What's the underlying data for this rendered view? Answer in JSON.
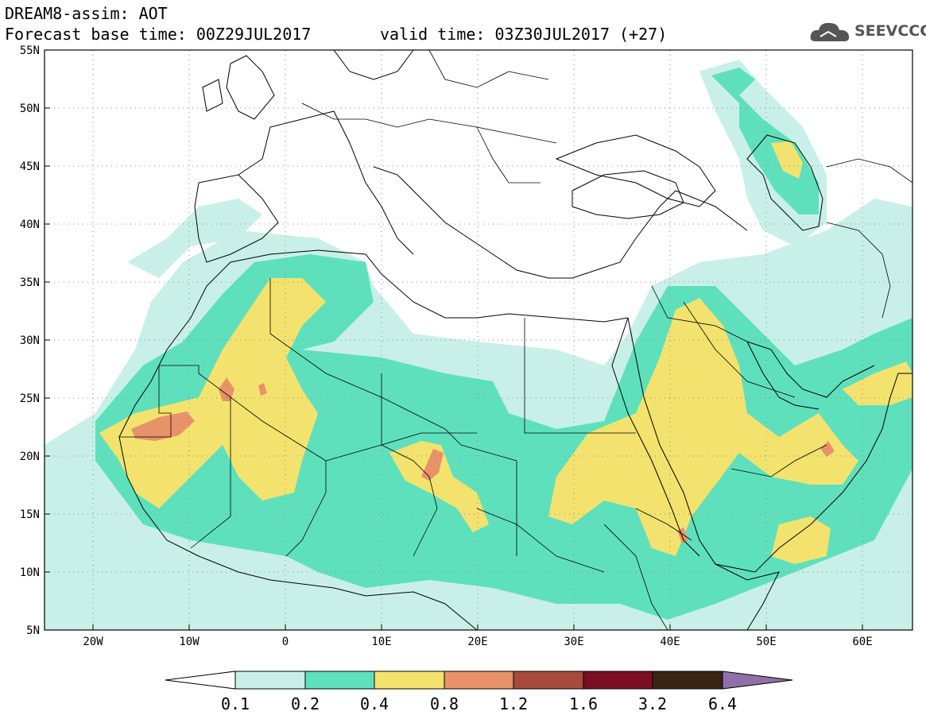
{
  "header": {
    "title": "DREAM8-assim: AOT",
    "base_time": "Forecast base time: 00Z29JUL2017",
    "valid_time": "valid time: 03Z30JUL2017 (+27)"
  },
  "logo": {
    "text": "SEEVCCC",
    "icon": "cloud-icon"
  },
  "map": {
    "lat_labels": [
      "55N",
      "50N",
      "45N",
      "40N",
      "35N",
      "30N",
      "25N",
      "20N",
      "15N",
      "10N",
      "5N"
    ],
    "lon_labels": [
      "20W",
      "10W",
      "0",
      "10E",
      "20E",
      "30E",
      "40E",
      "50E",
      "60E"
    ],
    "lon_range": [
      -25,
      65
    ],
    "lat_range": [
      5,
      55
    ]
  },
  "legend": {
    "labels": [
      "0.1",
      "0.2",
      "0.4",
      "0.8",
      "1.2",
      "1.6",
      "3.2",
      "6.4"
    ],
    "colors": [
      "#c8f0e8",
      "#5fe0bc",
      "#f3e36e",
      "#e8926a",
      "#a84a3c",
      "#7a0f24",
      "#3c2414",
      "#9070a8"
    ]
  },
  "colors": {
    "level1": "#c8f0e8",
    "level2": "#5fe0bc",
    "level3": "#f3e36e",
    "level4": "#e8926a",
    "level5": "#a84a3c"
  }
}
